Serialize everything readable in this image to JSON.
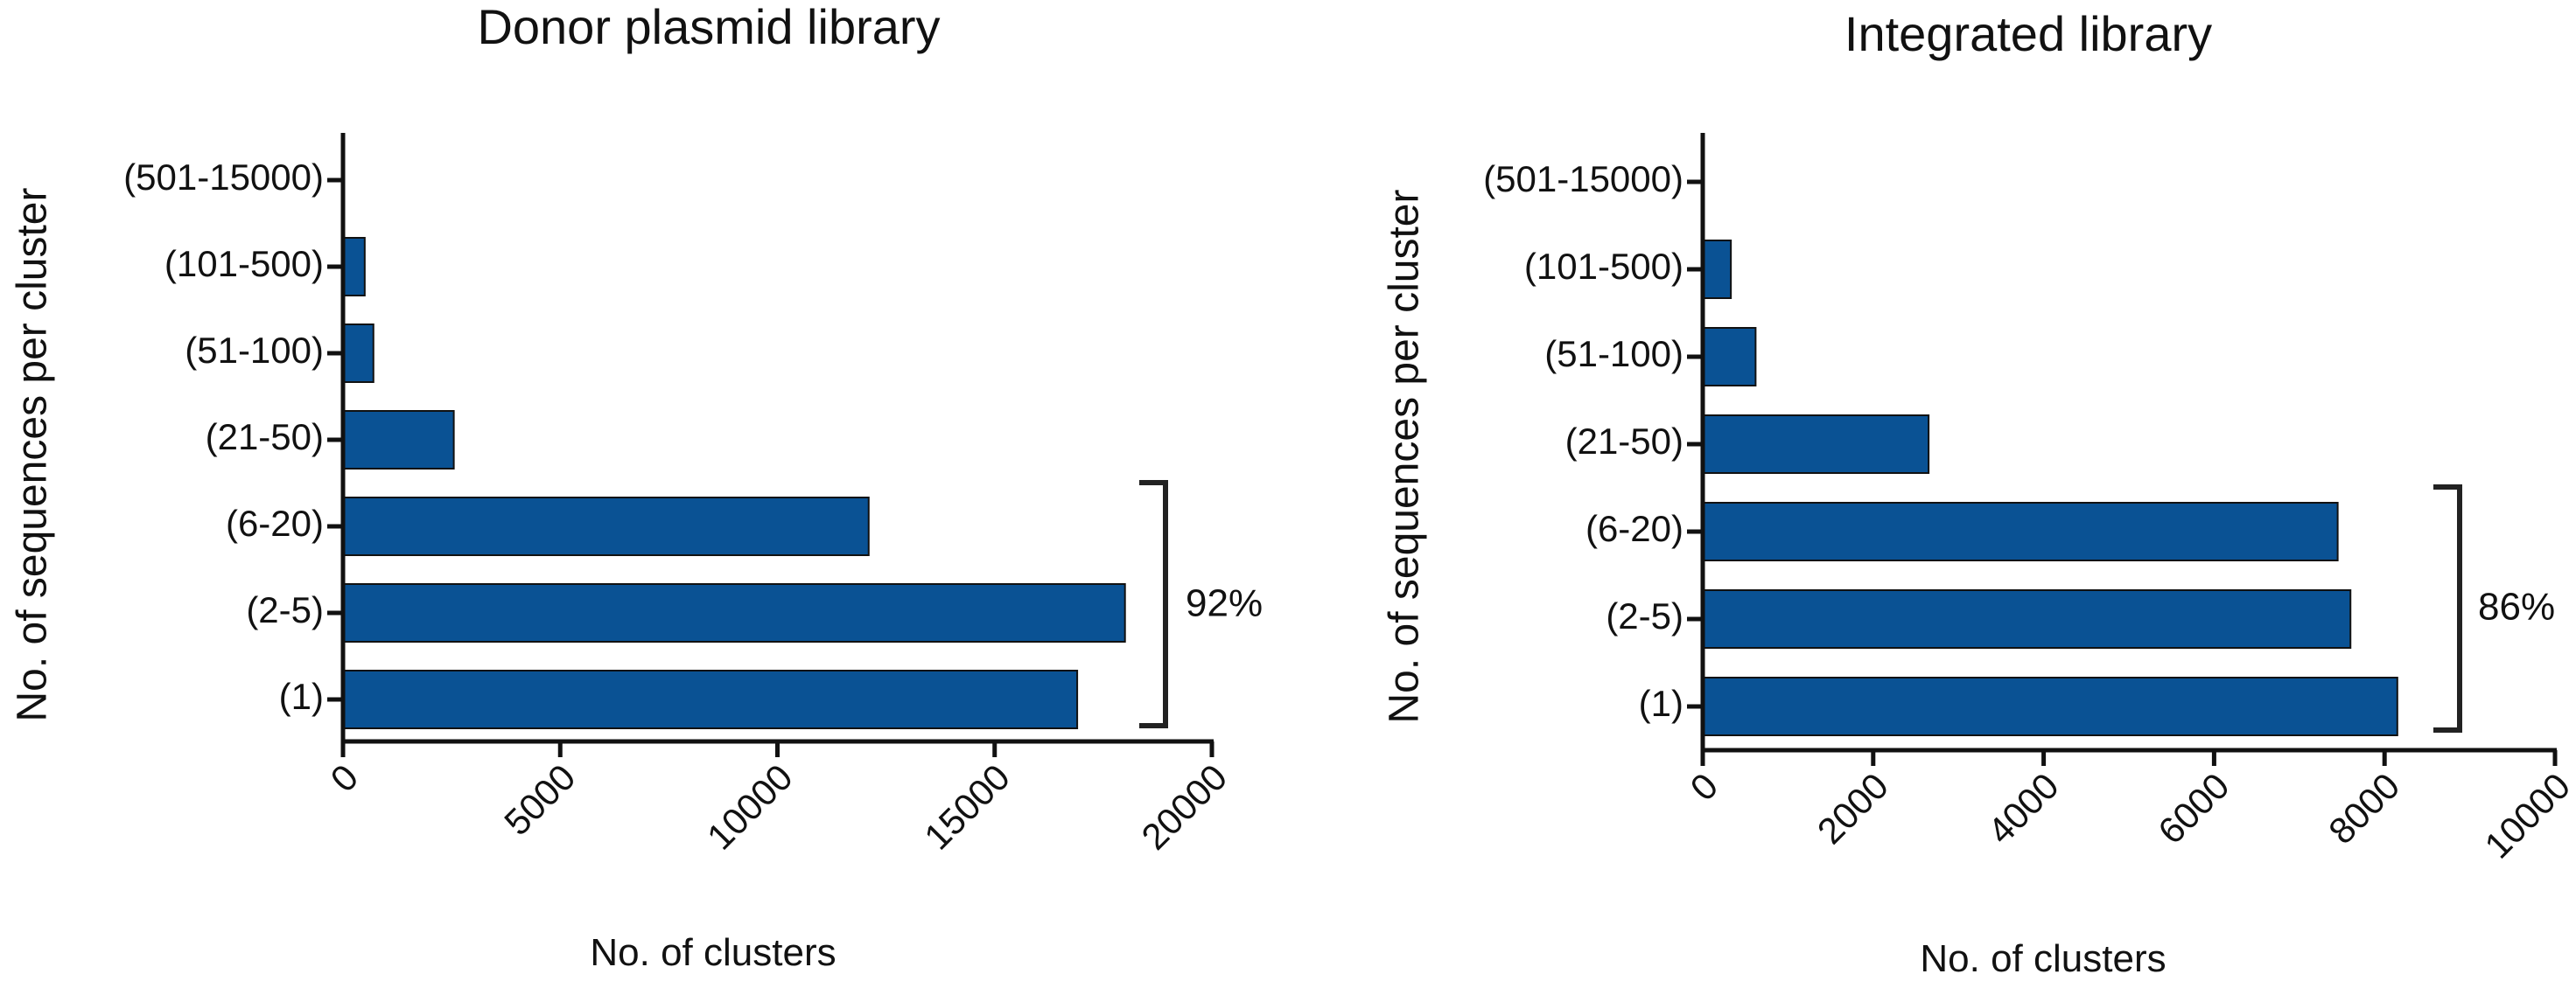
{
  "colors": {
    "bar": "#0a5294",
    "axis": "#111111"
  },
  "chart_data": [
    {
      "type": "bar",
      "orientation": "horizontal",
      "title": "Donor plasmid library",
      "xlabel": "No. of clusters",
      "ylabel": "No. of sequences per cluster",
      "categories": [
        "(1)",
        "(2-5)",
        "(6-20)",
        "(21-50)",
        "(51-100)",
        "(101-500)",
        "(501-15000)"
      ],
      "values": [
        16900,
        18000,
        12100,
        2550,
        700,
        500,
        0
      ],
      "xlim": [
        0,
        20000
      ],
      "xticks": [
        "0",
        "5000",
        "10000",
        "15000",
        "20000"
      ],
      "bracket_label": "92%",
      "grid": false,
      "legend": "none"
    },
    {
      "type": "bar",
      "orientation": "horizontal",
      "title": "Integrated library",
      "xlabel": "No. of clusters",
      "ylabel": "No. of sequences per cluster",
      "categories": [
        "(1)",
        "(2-5)",
        "(6-20)",
        "(21-50)",
        "(51-100)",
        "(101-500)",
        "(501-15000)"
      ],
      "values": [
        8150,
        7600,
        7450,
        2650,
        620,
        330,
        0
      ],
      "xlim": [
        0,
        10000
      ],
      "xticks": [
        "0",
        "2000",
        "4000",
        "6000",
        "8000",
        "10000"
      ],
      "bracket_label": "86%",
      "grid": false,
      "legend": "none"
    }
  ]
}
